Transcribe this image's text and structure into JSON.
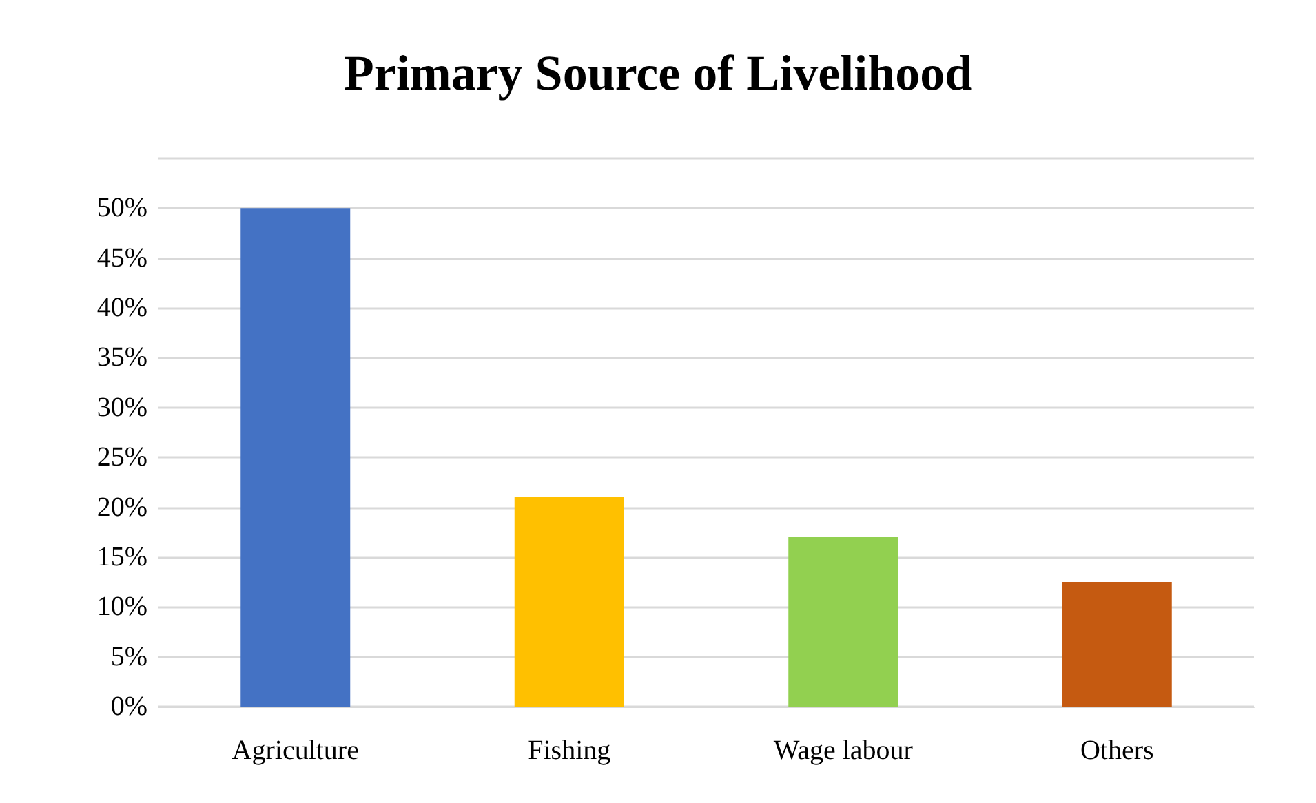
{
  "chart_data": {
    "type": "bar",
    "title": "Primary Source of Livelihood",
    "categories": [
      "Agriculture",
      "Fishing",
      "Wage labour",
      "Others"
    ],
    "values": [
      50,
      21,
      17,
      12.5
    ],
    "colors": [
      "#4472c4",
      "#ffc000",
      "#92d050",
      "#c55a11"
    ],
    "ylim": [
      0,
      55
    ],
    "yticks": [
      {
        "value": 0,
        "label": "0%"
      },
      {
        "value": 5,
        "label": "5%"
      },
      {
        "value": 10,
        "label": "10%"
      },
      {
        "value": 15,
        "label": "15%"
      },
      {
        "value": 20,
        "label": "20%"
      },
      {
        "value": 25,
        "label": "25%"
      },
      {
        "value": 30,
        "label": "30%"
      },
      {
        "value": 35,
        "label": "35%"
      },
      {
        "value": 40,
        "label": "40%"
      },
      {
        "value": 45,
        "label": "45%"
      },
      {
        "value": 50,
        "label": "50%"
      },
      {
        "value": 55,
        "label": null
      }
    ],
    "grid": "y"
  }
}
